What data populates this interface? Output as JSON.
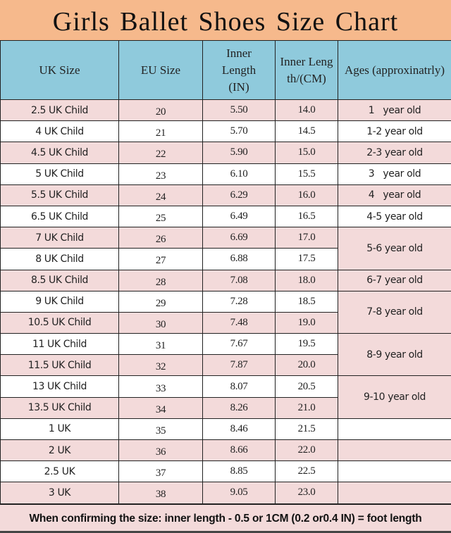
{
  "title": "Girls Ballet Shoes Size  Chart",
  "headers": [
    "UK Size",
    "EU Size",
    "Inner Length (IN)",
    "Inner Length/(CM)",
    "Ages (approxinatrly)"
  ],
  "rows": [
    {
      "uk": "2.5 UK Child",
      "eu": "20",
      "in": "5.50",
      "cm": "14.0",
      "age": "1   year old",
      "span": 1
    },
    {
      "uk": "4 UK Child",
      "eu": "21",
      "in": "5.70",
      "cm": "14.5",
      "age": "1-2 year old",
      "span": 1
    },
    {
      "uk": "4.5 UK Child",
      "eu": "22",
      "in": "5.90",
      "cm": "15.0",
      "age": "2-3 year old",
      "span": 1
    },
    {
      "uk": "5 UK Child",
      "eu": "23",
      "in": "6.10",
      "cm": "15.5",
      "age": "3   year old",
      "span": 1
    },
    {
      "uk": "5.5  UK Child",
      "eu": "24",
      "in": "6.29",
      "cm": "16.0",
      "age": "4   year old",
      "span": 1
    },
    {
      "uk": "6.5  UK Child",
      "eu": "25",
      "in": "6.49",
      "cm": "16.5",
      "age": "4-5 year old",
      "span": 1
    },
    {
      "uk": "7  UK Child",
      "eu": "26",
      "in": "6.69",
      "cm": "17.0",
      "age": "5-6 year old",
      "span": 2
    },
    {
      "uk": "8  UK Child",
      "eu": "27",
      "in": "6.88",
      "cm": "17.5",
      "age": null,
      "span": 0
    },
    {
      "uk": "8.5  UK Child",
      "eu": "28",
      "in": "7.08",
      "cm": "18.0",
      "age": "6-7 year old",
      "span": 1
    },
    {
      "uk": "9  UK Child",
      "eu": "29",
      "in": "7.28",
      "cm": "18.5",
      "age": "7-8 year old",
      "span": 2
    },
    {
      "uk": "10.5  UK Child",
      "eu": "30",
      "in": "7.48",
      "cm": "19.0",
      "age": null,
      "span": 0
    },
    {
      "uk": "11 UK Child",
      "eu": "31",
      "in": "7.67",
      "cm": "19.5",
      "age": "8-9 year old",
      "span": 2
    },
    {
      "uk": "11.5  UK Child",
      "eu": "32",
      "in": "7.87",
      "cm": "20.0",
      "age": null,
      "span": 0
    },
    {
      "uk": "13 UK Child",
      "eu": "33",
      "in": "8.07",
      "cm": "20.5",
      "age": "9-10 year old",
      "span": 2
    },
    {
      "uk": "13.5  UK Child",
      "eu": "34",
      "in": "8.26",
      "cm": "21.0",
      "age": null,
      "span": 0
    },
    {
      "uk": "1  UK",
      "eu": "35",
      "in": "8.46",
      "cm": "21.5",
      "age": "",
      "span": 1
    },
    {
      "uk": "2 UK",
      "eu": "36",
      "in": "8.66",
      "cm": "22.0",
      "age": "",
      "span": 1
    },
    {
      "uk": "2.5 UK",
      "eu": "37",
      "in": "8.85",
      "cm": "22.5",
      "age": "",
      "span": 1
    },
    {
      "uk": "3  UK",
      "eu": "38",
      "in": "9.05",
      "cm": "23.0",
      "age": "",
      "span": 1
    }
  ],
  "footer": "When confirming the size: inner length - 0.5 or 1CM (0.2 or0.4 IN) = foot length"
}
